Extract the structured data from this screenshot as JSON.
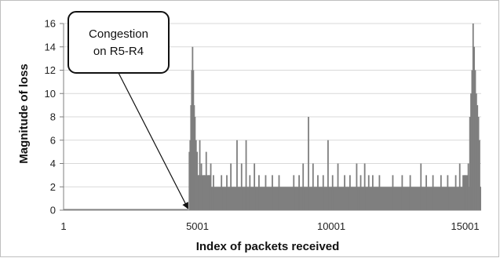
{
  "chart_data": {
    "type": "bar",
    "xlabel": "Index of packets received",
    "ylabel": "Magnitude of loss",
    "xlim": [
      1,
      15600
    ],
    "ylim": [
      0,
      16
    ],
    "x_ticks": [
      {
        "value": 1,
        "label": "1"
      },
      {
        "value": 5001,
        "label": "5001"
      },
      {
        "value": 10001,
        "label": "10001"
      },
      {
        "value": 15001,
        "label": "15001"
      }
    ],
    "y_ticks": [
      {
        "value": 0,
        "label": "0"
      },
      {
        "value": 2,
        "label": "2"
      },
      {
        "value": 4,
        "label": "4"
      },
      {
        "value": 6,
        "label": "6"
      },
      {
        "value": 8,
        "label": "8"
      },
      {
        "value": 10,
        "label": "10"
      },
      {
        "value": 12,
        "label": "12"
      },
      {
        "value": 14,
        "label": "14"
      },
      {
        "value": 16,
        "label": "16"
      }
    ],
    "grid": "horizontal",
    "color": "#7f7f7f",
    "baseline": {
      "from": 4700,
      "to": 15600,
      "value": 2
    },
    "segments": [
      {
        "from": 1,
        "to": 4650,
        "value": 0.1
      },
      {
        "from": 4700,
        "to": 5500,
        "value": 3
      },
      {
        "from": 14900,
        "to": 15150,
        "value": 3
      }
    ],
    "spikes": [
      {
        "x": 4700,
        "value": 5
      },
      {
        "x": 4730,
        "value": 6
      },
      {
        "x": 4760,
        "value": 9
      },
      {
        "x": 4790,
        "value": 12
      },
      {
        "x": 4820,
        "value": 14
      },
      {
        "x": 4850,
        "value": 12
      },
      {
        "x": 4880,
        "value": 9
      },
      {
        "x": 4910,
        "value": 8
      },
      {
        "x": 4950,
        "value": 6
      },
      {
        "x": 4990,
        "value": 5
      },
      {
        "x": 5050,
        "value": 3
      },
      {
        "x": 5090,
        "value": 6
      },
      {
        "x": 5150,
        "value": 4
      },
      {
        "x": 5250,
        "value": 3
      },
      {
        "x": 5330,
        "value": 5
      },
      {
        "x": 5420,
        "value": 3
      },
      {
        "x": 5500,
        "value": 4
      },
      {
        "x": 5600,
        "value": 3
      },
      {
        "x": 5900,
        "value": 3
      },
      {
        "x": 6100,
        "value": 3
      },
      {
        "x": 6250,
        "value": 4
      },
      {
        "x": 6480,
        "value": 6
      },
      {
        "x": 6650,
        "value": 4
      },
      {
        "x": 6820,
        "value": 6
      },
      {
        "x": 6960,
        "value": 3
      },
      {
        "x": 7130,
        "value": 4
      },
      {
        "x": 7300,
        "value": 3
      },
      {
        "x": 7550,
        "value": 3
      },
      {
        "x": 7800,
        "value": 3
      },
      {
        "x": 8050,
        "value": 3
      },
      {
        "x": 8600,
        "value": 3
      },
      {
        "x": 8800,
        "value": 3
      },
      {
        "x": 8950,
        "value": 4
      },
      {
        "x": 9150,
        "value": 8
      },
      {
        "x": 9320,
        "value": 4
      },
      {
        "x": 9500,
        "value": 3
      },
      {
        "x": 9700,
        "value": 3
      },
      {
        "x": 9880,
        "value": 6
      },
      {
        "x": 10050,
        "value": 3
      },
      {
        "x": 10250,
        "value": 4
      },
      {
        "x": 10500,
        "value": 3
      },
      {
        "x": 10700,
        "value": 3
      },
      {
        "x": 10950,
        "value": 4
      },
      {
        "x": 11100,
        "value": 3
      },
      {
        "x": 11250,
        "value": 4
      },
      {
        "x": 11400,
        "value": 3
      },
      {
        "x": 11550,
        "value": 3
      },
      {
        "x": 11800,
        "value": 3
      },
      {
        "x": 12300,
        "value": 3
      },
      {
        "x": 12650,
        "value": 3
      },
      {
        "x": 12950,
        "value": 3
      },
      {
        "x": 13350,
        "value": 4
      },
      {
        "x": 13550,
        "value": 3
      },
      {
        "x": 13800,
        "value": 3
      },
      {
        "x": 14100,
        "value": 3
      },
      {
        "x": 14350,
        "value": 3
      },
      {
        "x": 14650,
        "value": 3
      },
      {
        "x": 14800,
        "value": 4
      },
      {
        "x": 15000,
        "value": 3
      },
      {
        "x": 15120,
        "value": 4
      },
      {
        "x": 15180,
        "value": 8
      },
      {
        "x": 15220,
        "value": 10
      },
      {
        "x": 15260,
        "value": 12
      },
      {
        "x": 15300,
        "value": 16
      },
      {
        "x": 15340,
        "value": 14
      },
      {
        "x": 15380,
        "value": 12
      },
      {
        "x": 15420,
        "value": 10
      },
      {
        "x": 15460,
        "value": 9
      },
      {
        "x": 15500,
        "value": 8
      },
      {
        "x": 15540,
        "value": 6
      }
    ],
    "annotation": {
      "lines": [
        "Congestion",
        "on R5-R4"
      ],
      "points_to": {
        "x": 4650,
        "value": 0
      }
    }
  }
}
